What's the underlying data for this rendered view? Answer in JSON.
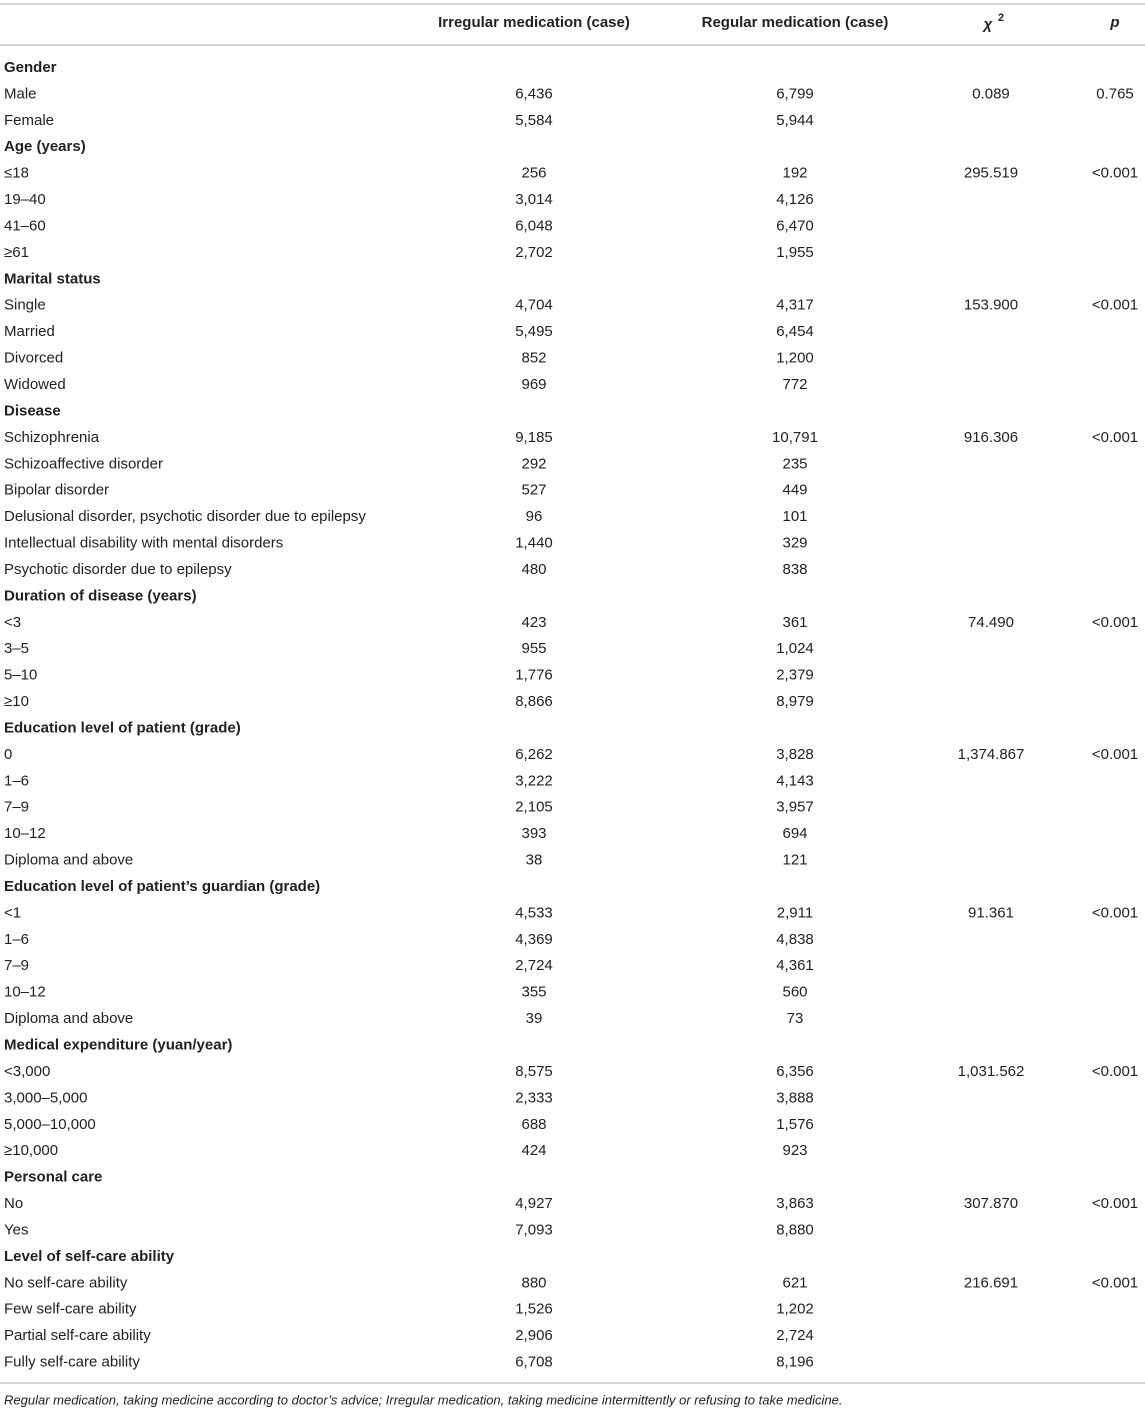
{
  "header": {
    "columns": [
      "Irregular medication (case)",
      "Regular medication (case)"
    ],
    "chi_symbol": "χ",
    "chi_superscript": "2",
    "p": "p"
  },
  "groups": [
    {
      "title": "Gender",
      "chi2": "0.089",
      "p": "0.765",
      "rows": [
        {
          "label": "Male",
          "irregular": "6,436",
          "regular": "6,799"
        },
        {
          "label": "Female",
          "irregular": "5,584",
          "regular": "5,944"
        }
      ]
    },
    {
      "title": "Age (years)",
      "chi2": "295.519",
      "p": "<0.001",
      "rows": [
        {
          "label": "≤18",
          "irregular": "256",
          "regular": "192"
        },
        {
          "label": "19–40",
          "irregular": "3,014",
          "regular": "4,126"
        },
        {
          "label": "41–60",
          "irregular": "6,048",
          "regular": "6,470"
        },
        {
          "label": "≥61",
          "irregular": "2,702",
          "regular": "1,955"
        }
      ]
    },
    {
      "title": "Marital status",
      "chi2": "153.900",
      "p": "<0.001",
      "rows": [
        {
          "label": "Single",
          "irregular": "4,704",
          "regular": "4,317"
        },
        {
          "label": "Married",
          "irregular": "5,495",
          "regular": "6,454"
        },
        {
          "label": "Divorced",
          "irregular": "852",
          "regular": "1,200"
        },
        {
          "label": "Widowed",
          "irregular": "969",
          "regular": "772"
        }
      ]
    },
    {
      "title": "Disease",
      "chi2": "916.306",
      "p": "<0.001",
      "rows": [
        {
          "label": "Schizophrenia",
          "irregular": "9,185",
          "regular": "10,791"
        },
        {
          "label": "Schizoaffective disorder",
          "irregular": "292",
          "regular": "235"
        },
        {
          "label": "Bipolar disorder",
          "irregular": "527",
          "regular": "449"
        },
        {
          "label": "Delusional disorder, psychotic disorder due to epilepsy",
          "irregular": "96",
          "regular": "101"
        },
        {
          "label": "Intellectual disability with mental disorders",
          "irregular": "1,440",
          "regular": "329"
        },
        {
          "label": "Psychotic disorder due to epilepsy",
          "irregular": "480",
          "regular": "838"
        }
      ]
    },
    {
      "title": "Duration of disease (years)",
      "chi2": "74.490",
      "p": "<0.001",
      "rows": [
        {
          "label": "<3",
          "irregular": "423",
          "regular": "361"
        },
        {
          "label": "3–5",
          "irregular": "955",
          "regular": "1,024"
        },
        {
          "label": "5–10",
          "irregular": "1,776",
          "regular": "2,379"
        },
        {
          "label": "≥10",
          "irregular": "8,866",
          "regular": "8,979"
        }
      ]
    },
    {
      "title": "Education level of patient (grade)",
      "chi2": "1,374.867",
      "p": "<0.001",
      "rows": [
        {
          "label": "0",
          "irregular": "6,262",
          "regular": "3,828"
        },
        {
          "label": "1–6",
          "irregular": "3,222",
          "regular": "4,143"
        },
        {
          "label": "7–9",
          "irregular": "2,105",
          "regular": "3,957"
        },
        {
          "label": "10–12",
          "irregular": "393",
          "regular": "694"
        },
        {
          "label": "Diploma and above",
          "irregular": "38",
          "regular": "121"
        }
      ]
    },
    {
      "title": "Education level of patient’s guardian (grade)",
      "chi2": "91.361",
      "p": "<0.001",
      "rows": [
        {
          "label": "<1",
          "irregular": "4,533",
          "regular": "2,911"
        },
        {
          "label": "1–6",
          "irregular": "4,369",
          "regular": "4,838"
        },
        {
          "label": "7–9",
          "irregular": "2,724",
          "regular": "4,361"
        },
        {
          "label": "10–12",
          "irregular": "355",
          "regular": "560"
        },
        {
          "label": "Diploma and above",
          "irregular": "39",
          "regular": "73"
        }
      ]
    },
    {
      "title": "Medical expenditure (yuan/year)",
      "chi2": "1,031.562",
      "p": "<0.001",
      "rows": [
        {
          "label": "<3,000",
          "irregular": "8,575",
          "regular": "6,356"
        },
        {
          "label": "3,000–5,000",
          "irregular": "2,333",
          "regular": "3,888"
        },
        {
          "label": "5,000–10,000",
          "irregular": "688",
          "regular": "1,576"
        },
        {
          "label": "≥10,000",
          "irregular": "424",
          "regular": "923"
        }
      ]
    },
    {
      "title": "Personal care",
      "chi2": "307.870",
      "p": "<0.001",
      "rows": [
        {
          "label": "No",
          "irregular": "4,927",
          "regular": "3,863"
        },
        {
          "label": "Yes",
          "irregular": "7,093",
          "regular": "8,880"
        }
      ]
    },
    {
      "title": "Level of self-care ability",
      "chi2": "216.691",
      "p": "<0.001",
      "rows": [
        {
          "label": "No self-care ability",
          "irregular": "880",
          "regular": "621"
        },
        {
          "label": "Few self-care ability",
          "irregular": "1,526",
          "regular": "1,202"
        },
        {
          "label": "Partial self-care ability",
          "irregular": "2,906",
          "regular": "2,724"
        },
        {
          "label": "Fully self-care ability",
          "irregular": "6,708",
          "regular": "8,196"
        }
      ]
    }
  ],
  "footnote": "Regular medication, taking medicine according to doctor’s advice; Irregular medication, taking medicine intermittently or refusing to take medicine."
}
